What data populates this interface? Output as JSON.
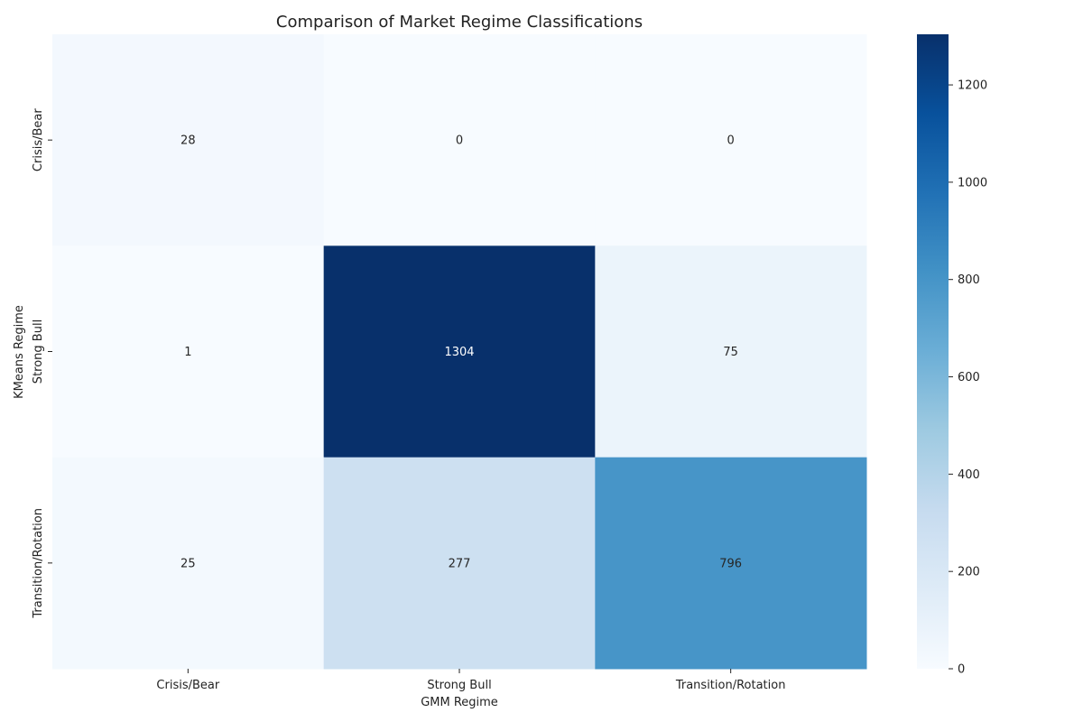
{
  "chart_data": {
    "type": "heatmap",
    "title": "Comparison of Market Regime Classifications",
    "xlabel": "GMM Regime",
    "ylabel": "KMeans Regime",
    "x_categories": [
      "Crisis/Bear",
      "Strong Bull",
      "Transition/Rotation"
    ],
    "y_categories": [
      "Crisis/Bear",
      "Strong Bull",
      "Transition/Rotation"
    ],
    "values": [
      [
        28,
        0,
        0
      ],
      [
        1,
        1304,
        75
      ],
      [
        25,
        277,
        796
      ]
    ],
    "colorbar": {
      "range": [
        0,
        1304
      ],
      "ticks": [
        0,
        200,
        400,
        600,
        800,
        1000,
        1200
      ],
      "colormap": "Blues",
      "palette": [
        "#f7fbff",
        "#deebf7",
        "#c6dbef",
        "#9ecae1",
        "#6baed6",
        "#4292c6",
        "#2171b5",
        "#08519c",
        "#08306b"
      ]
    },
    "annotation_colors": {
      "dark": "#262626",
      "light": "#ffffff"
    }
  }
}
